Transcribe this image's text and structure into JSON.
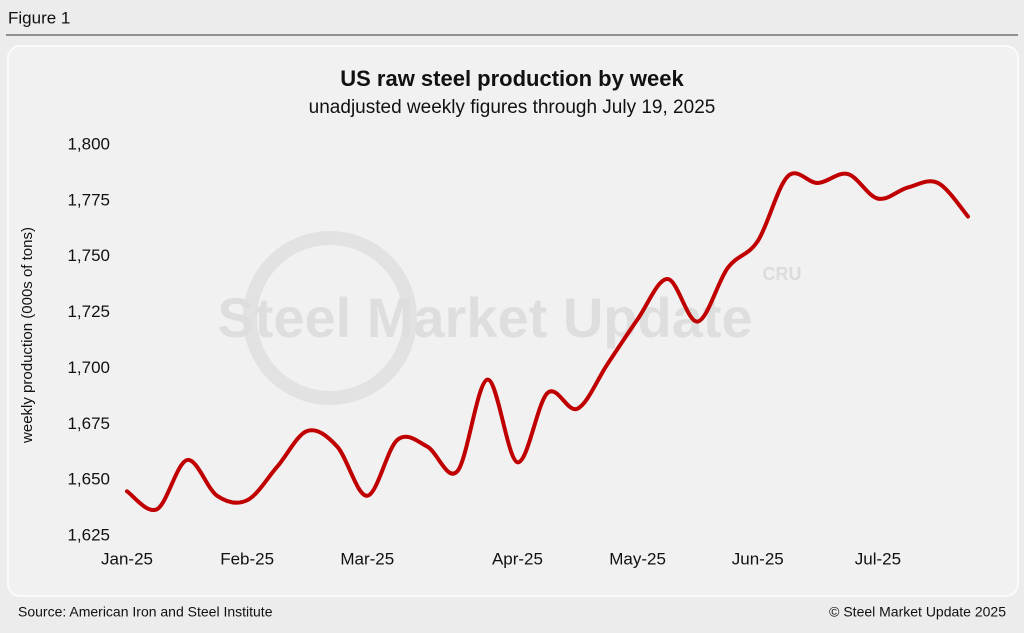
{
  "figure_label": "Figure 1",
  "chart_data": {
    "type": "line",
    "title": "US raw steel production by week",
    "subtitle": "unadjusted weekly figures through July 19, 2025",
    "y_label": "weekly production (000s of tons)",
    "watermark": "Steel Market Update",
    "watermark_logo": "CRU",
    "categories": [
      "Jan-25",
      null,
      null,
      null,
      "Feb-25",
      null,
      null,
      null,
      "Mar-25",
      null,
      null,
      null,
      null,
      "Apr-25",
      null,
      null,
      null,
      "May-25",
      null,
      null,
      null,
      "Jun-25",
      null,
      null,
      null,
      "Jul-25",
      null,
      null,
      null
    ],
    "series": [
      {
        "name": "US raw steel production",
        "color": "#c00000",
        "values": [
          1645,
          1637,
          1659,
          1643,
          1641,
          1656,
          1672,
          1665,
          1643,
          1668,
          1665,
          1654,
          1695,
          1658,
          1689,
          1682,
          1702,
          1722,
          1740,
          1721,
          1745,
          1757,
          1786,
          1783,
          1787,
          1776,
          1781,
          1783,
          1768
        ]
      }
    ],
    "ylim": [
      1625,
      1800
    ],
    "yticks": [
      {
        "value": 1625,
        "label": "1,625"
      },
      {
        "value": 1650,
        "label": "1,650"
      },
      {
        "value": 1675,
        "label": "1,675"
      },
      {
        "value": 1700,
        "label": "1,700"
      },
      {
        "value": 1725,
        "label": "1,725"
      },
      {
        "value": 1750,
        "label": "1,750"
      },
      {
        "value": 1775,
        "label": "1,775"
      },
      {
        "value": 1800,
        "label": "1,800"
      }
    ],
    "grid": false
  },
  "footer": {
    "source": "Source: American Iron and Steel Institute",
    "copyright": "© Steel Market Update 2025"
  }
}
